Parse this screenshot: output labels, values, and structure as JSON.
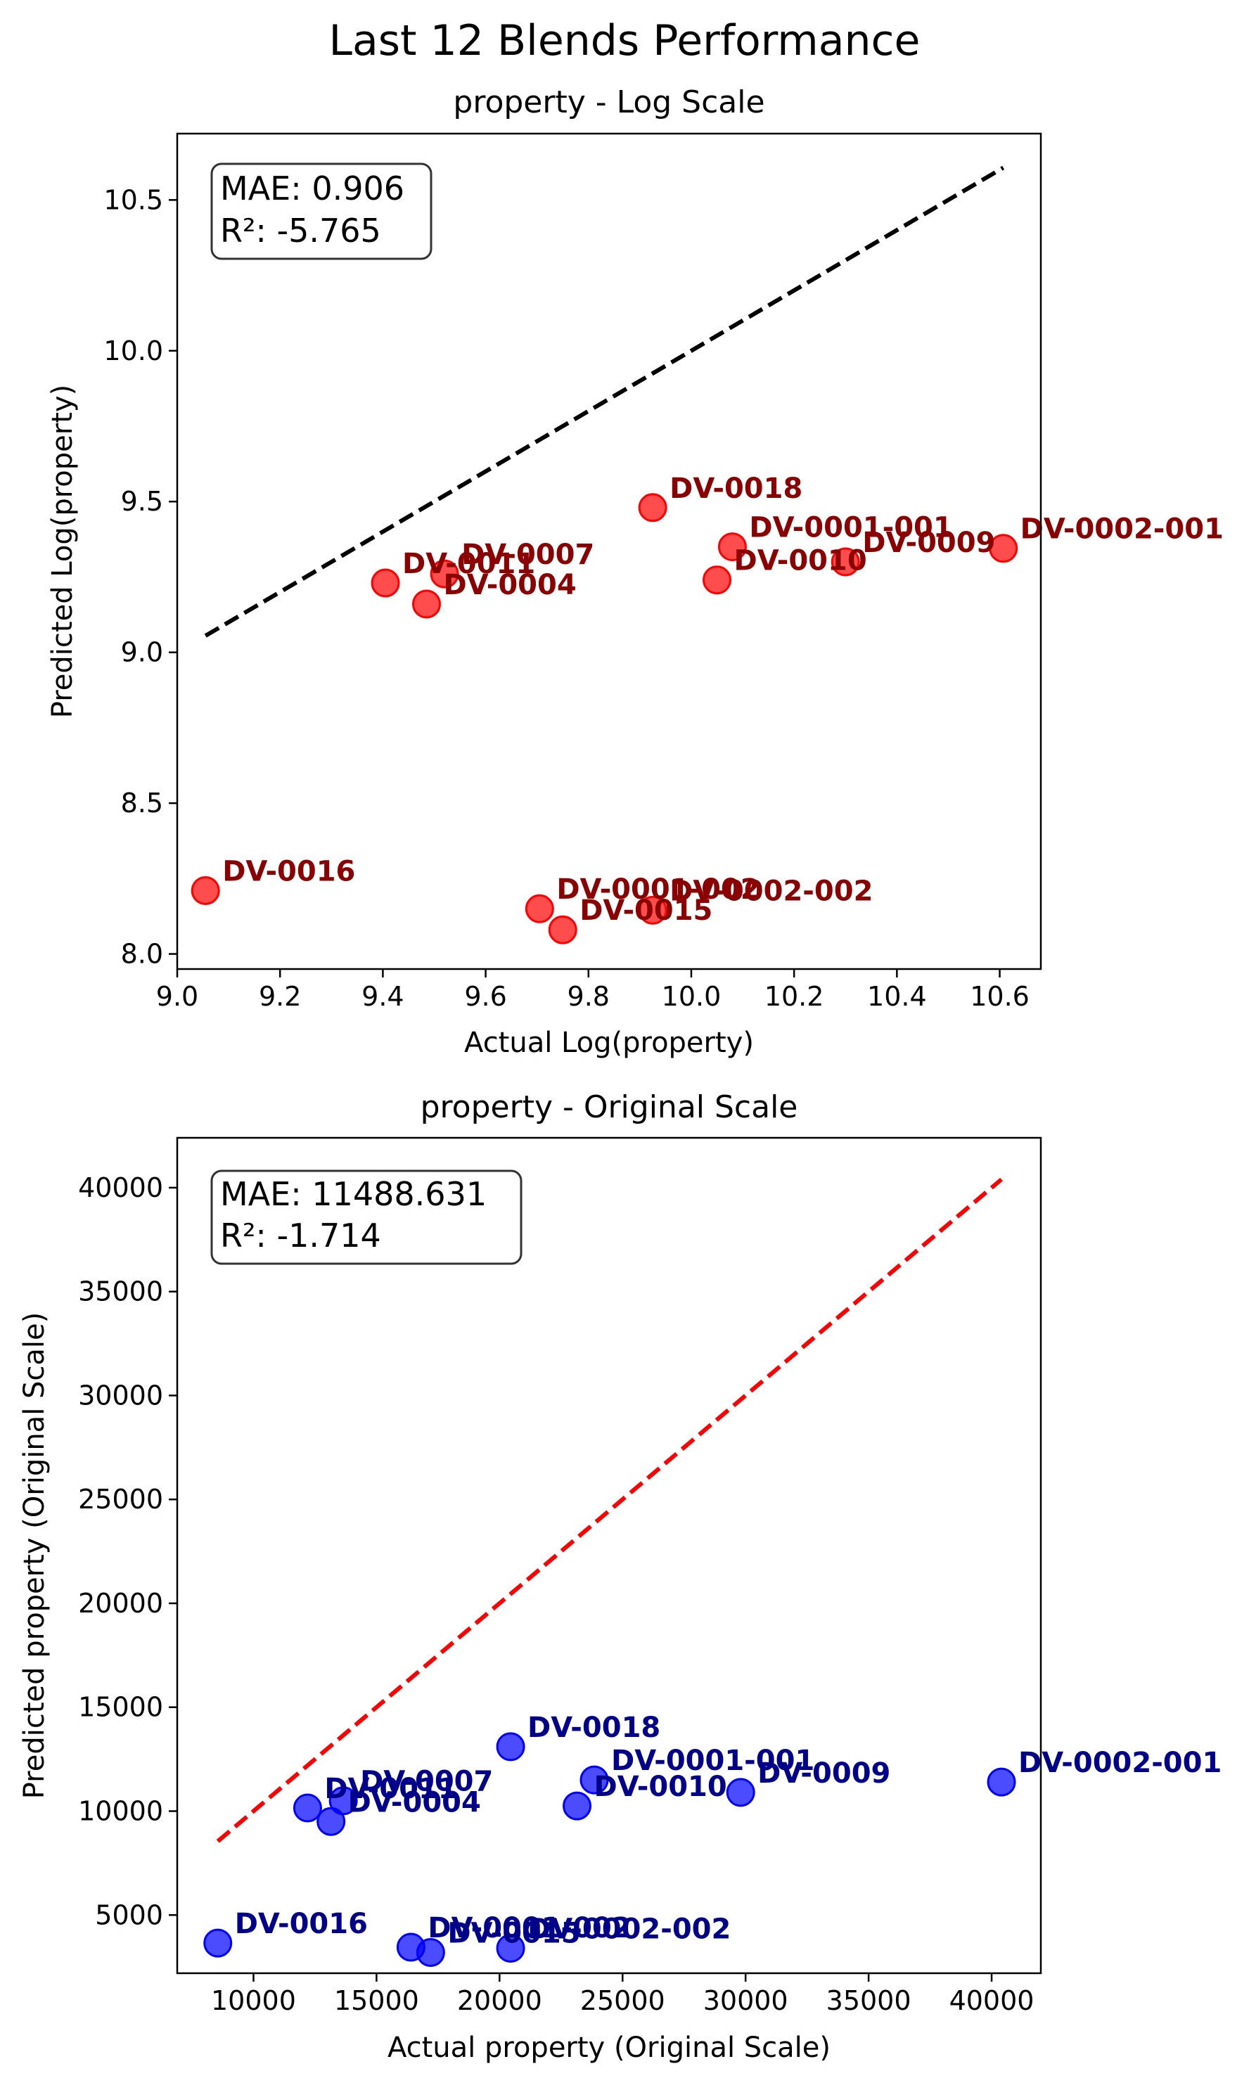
{
  "figure": {
    "suptitle": "Last 12 Blends Performance"
  },
  "chart_data": [
    {
      "type": "scatter",
      "title": "property - Log Scale",
      "xlabel": "Actual Log(property)",
      "ylabel": "Predicted Log(property)",
      "xlim": [
        9.0,
        10.68
      ],
      "ylim": [
        7.95,
        10.72
      ],
      "xticks": [
        9.0,
        9.2,
        9.4,
        9.6,
        9.8,
        10.0,
        10.2,
        10.4,
        10.6
      ],
      "xtick_labels": [
        "9.0",
        "9.2",
        "9.4",
        "9.6",
        "9.8",
        "10.0",
        "10.2",
        "10.4",
        "10.6"
      ],
      "yticks": [
        8.0,
        8.5,
        9.0,
        9.5,
        10.0,
        10.5
      ],
      "ytick_labels": [
        "8.0",
        "8.5",
        "9.0",
        "9.5",
        "10.0",
        "10.5"
      ],
      "grid": false,
      "stats": {
        "mae": "MAE: 0.906",
        "r2": "R²: -5.765"
      },
      "reference_line": {
        "x": [
          9.055,
          10.607
        ],
        "y": [
          9.055,
          10.607
        ],
        "color": "#000000",
        "style": "dashed"
      },
      "marker_color": "#ff0000",
      "label_color": "#8b0000",
      "points": [
        {
          "label": "DV-0018",
          "x": 9.925,
          "y": 9.48
        },
        {
          "label": "DV-0001-001",
          "x": 10.08,
          "y": 9.35
        },
        {
          "label": "DV-0010",
          "x": 10.05,
          "y": 9.24
        },
        {
          "label": "DV-0009",
          "x": 10.3,
          "y": 9.3
        },
        {
          "label": "DV-0002-001",
          "x": 10.607,
          "y": 9.345
        },
        {
          "label": "DV-0007",
          "x": 9.52,
          "y": 9.26
        },
        {
          "label": "DV-0011",
          "x": 9.405,
          "y": 9.23
        },
        {
          "label": "DV-0004",
          "x": 9.485,
          "y": 9.16
        },
        {
          "label": "DV-0016",
          "x": 9.055,
          "y": 8.21
        },
        {
          "label": "DV-0001-002",
          "x": 9.705,
          "y": 8.15
        },
        {
          "label": "DV-0002-002",
          "x": 9.925,
          "y": 8.145
        },
        {
          "label": "DV-0015",
          "x": 9.75,
          "y": 8.08
        }
      ]
    },
    {
      "type": "scatter",
      "title": "property - Original Scale",
      "xlabel": "Actual property (Original Scale)",
      "ylabel": "Predicted property (Original Scale)",
      "xlim": [
        6900,
        42000
      ],
      "ylim": [
        2200,
        42400
      ],
      "xticks": [
        10000,
        15000,
        20000,
        25000,
        30000,
        35000,
        40000
      ],
      "xtick_labels": [
        "10000",
        "15000",
        "20000",
        "25000",
        "30000",
        "35000",
        "40000"
      ],
      "yticks": [
        5000,
        10000,
        15000,
        20000,
        25000,
        30000,
        35000,
        40000
      ],
      "ytick_labels": [
        "5000",
        "10000",
        "15000",
        "20000",
        "25000",
        "30000",
        "35000",
        "40000"
      ],
      "grid": false,
      "stats": {
        "mae": "MAE: 11488.631",
        "r2": "R²: -1.714"
      },
      "reference_line": {
        "x": [
          8550,
          40400
        ],
        "y": [
          8550,
          40400
        ],
        "color": "#ff0000",
        "style": "dashed"
      },
      "marker_color": "#0000ff",
      "label_color": "#00008b",
      "points": [
        {
          "label": "DV-0018",
          "x": 20450,
          "y": 13100
        },
        {
          "label": "DV-0001-001",
          "x": 23850,
          "y": 11500
        },
        {
          "label": "DV-0010",
          "x": 23150,
          "y": 10250
        },
        {
          "label": "DV-0009",
          "x": 29800,
          "y": 10900
        },
        {
          "label": "DV-0002-001",
          "x": 40400,
          "y": 11400
        },
        {
          "label": "DV-0007",
          "x": 13650,
          "y": 10500
        },
        {
          "label": "DV-0011",
          "x": 12200,
          "y": 10150
        },
        {
          "label": "DV-0004",
          "x": 13150,
          "y": 9500
        },
        {
          "label": "DV-0016",
          "x": 8550,
          "y": 3650
        },
        {
          "label": "DV-0001-002",
          "x": 16400,
          "y": 3450
        },
        {
          "label": "DV-0002-002",
          "x": 20450,
          "y": 3400
        },
        {
          "label": "DV-0015",
          "x": 17200,
          "y": 3200
        }
      ]
    }
  ]
}
